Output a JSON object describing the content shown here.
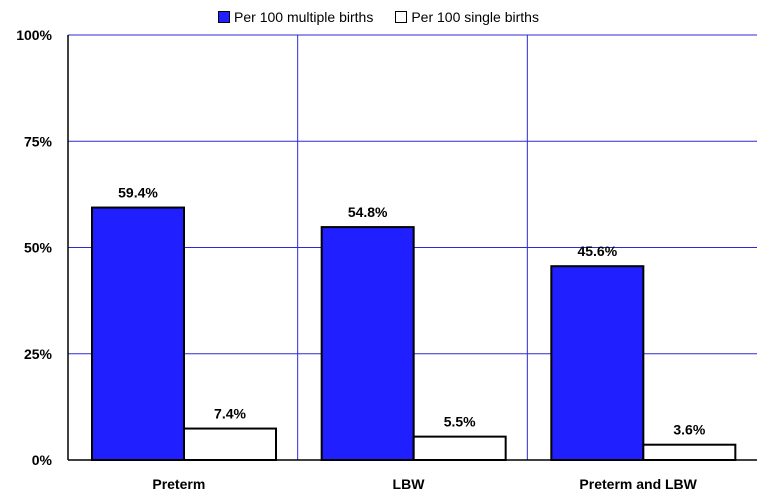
{
  "chart_data": {
    "type": "bar",
    "title": "",
    "xlabel": "",
    "ylabel": "",
    "categories": [
      "Preterm",
      "LBW",
      "Preterm and LBW"
    ],
    "series": [
      {
        "name": "Per 100 multiple births",
        "values": [
          59.4,
          54.8,
          45.6
        ],
        "labels": [
          "59.4%",
          "54.8%",
          "45.6%"
        ],
        "color": "#1f1fff"
      },
      {
        "name": "Per 100 single births",
        "values": [
          7.4,
          5.5,
          3.6
        ],
        "labels": [
          "7.4%",
          "5.5%",
          "3.6%"
        ],
        "color": "#ffffff"
      }
    ],
    "ylim": [
      0,
      100
    ],
    "yticks": [
      0,
      25,
      50,
      75,
      100
    ],
    "ytick_labels": [
      "0%",
      "25%",
      "50%",
      "75%",
      "100%"
    ],
    "grid": true,
    "grid_color": "#2b2bd6",
    "legend_position": "top"
  }
}
